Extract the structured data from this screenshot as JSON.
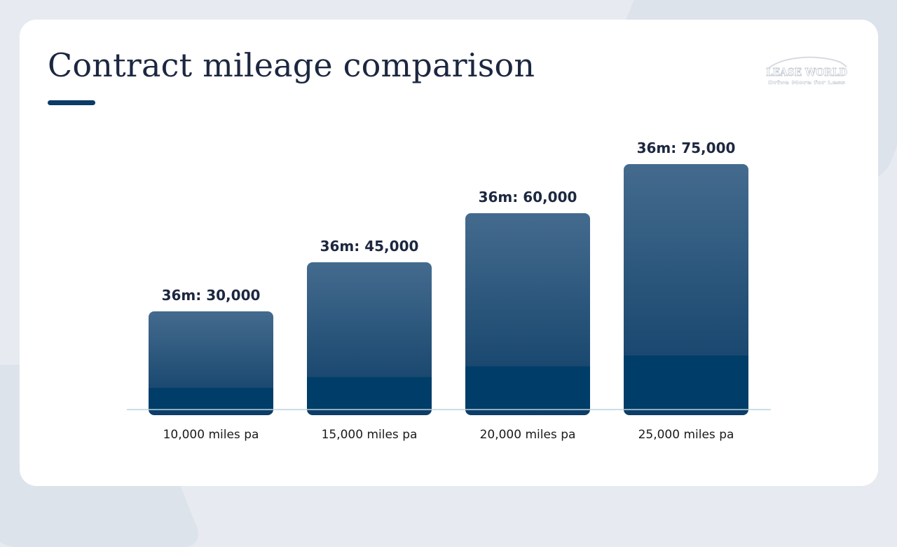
{
  "title": "Contract mileage comparison",
  "logo": {
    "wordmark": "LEASE WORLD",
    "tagline": "Drive More for Less",
    "icon": "car-silhouette-icon"
  },
  "colors": {
    "bar_top": "#446b8e",
    "bar_bottom": "#0d3d66",
    "bar_base": "#003d69",
    "accent": "#0b3b66",
    "baseline": "#b9d3df",
    "title": "#1c2740"
  },
  "chart_data": {
    "type": "bar",
    "title": "Contract mileage comparison",
    "categories": [
      "10,000 miles pa",
      "15,000 miles pa",
      "20,000 miles pa",
      "25,000 miles pa"
    ],
    "values": [
      30000,
      45000,
      60000,
      75000
    ],
    "data_labels": [
      "36m: 30,000",
      "36m: 45,000",
      "36m: 60,000",
      "36m: 75,000"
    ],
    "xlabel": "",
    "ylabel": "",
    "ylim": [
      0,
      75000
    ],
    "grid": false,
    "legend": "none"
  }
}
